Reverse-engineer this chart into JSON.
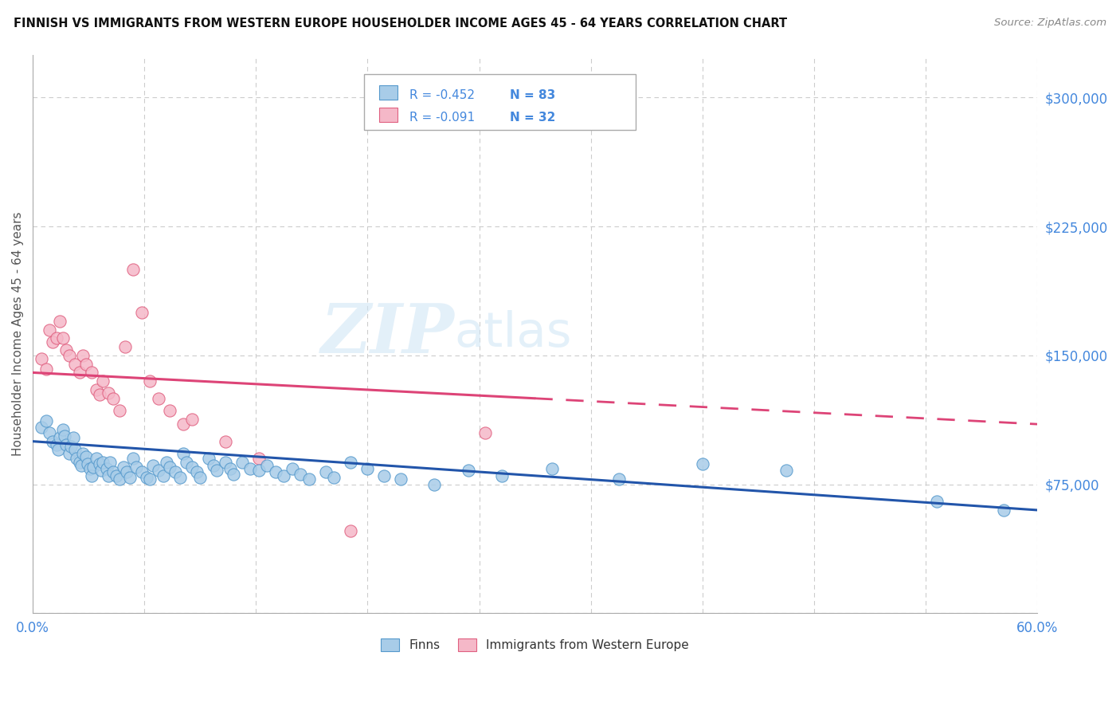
{
  "title": "FINNISH VS IMMIGRANTS FROM WESTERN EUROPE HOUSEHOLDER INCOME AGES 45 - 64 YEARS CORRELATION CHART",
  "source": "Source: ZipAtlas.com",
  "ylabel": "Householder Income Ages 45 - 64 years",
  "xlim": [
    0.0,
    0.6
  ],
  "ylim": [
    0,
    325000
  ],
  "yticks": [
    0,
    75000,
    150000,
    225000,
    300000
  ],
  "ytick_labels": [
    "",
    "$75,000",
    "$150,000",
    "$225,000",
    "$300,000"
  ],
  "legend_r1": "R = -0.452",
  "legend_n1": "N = 83",
  "legend_r2": "R = -0.091",
  "legend_n2": "N = 32",
  "color_finns": "#a8cce8",
  "color_finns_edge": "#5599cc",
  "color_immigrants": "#f5b8c8",
  "color_immigrants_edge": "#e06080",
  "color_finns_line": "#2255aa",
  "color_immigrants_line": "#dd4477",
  "color_axis_labels": "#4488dd",
  "color_title": "#111111",
  "watermark_color": "#cde4f5",
  "finns_x": [
    0.005,
    0.008,
    0.01,
    0.012,
    0.014,
    0.015,
    0.016,
    0.018,
    0.019,
    0.02,
    0.022,
    0.023,
    0.024,
    0.025,
    0.026,
    0.028,
    0.029,
    0.03,
    0.032,
    0.033,
    0.034,
    0.035,
    0.036,
    0.038,
    0.04,
    0.041,
    0.042,
    0.044,
    0.045,
    0.046,
    0.048,
    0.05,
    0.052,
    0.054,
    0.056,
    0.058,
    0.06,
    0.062,
    0.065,
    0.068,
    0.07,
    0.072,
    0.075,
    0.078,
    0.08,
    0.082,
    0.085,
    0.088,
    0.09,
    0.092,
    0.095,
    0.098,
    0.1,
    0.105,
    0.108,
    0.11,
    0.115,
    0.118,
    0.12,
    0.125,
    0.13,
    0.135,
    0.14,
    0.145,
    0.15,
    0.155,
    0.16,
    0.165,
    0.175,
    0.18,
    0.19,
    0.2,
    0.21,
    0.22,
    0.24,
    0.26,
    0.28,
    0.31,
    0.35,
    0.4,
    0.45,
    0.54,
    0.58
  ],
  "finns_y": [
    108000,
    112000,
    105000,
    100000,
    98000,
    95000,
    102000,
    107000,
    103000,
    98000,
    93000,
    97000,
    102000,
    95000,
    90000,
    88000,
    86000,
    93000,
    91000,
    87000,
    84000,
    80000,
    85000,
    90000,
    87000,
    83000,
    88000,
    84000,
    80000,
    88000,
    82000,
    80000,
    78000,
    85000,
    82000,
    79000,
    90000,
    85000,
    82000,
    79000,
    78000,
    86000,
    83000,
    80000,
    88000,
    85000,
    82000,
    79000,
    93000,
    88000,
    85000,
    82000,
    79000,
    90000,
    86000,
    83000,
    88000,
    84000,
    81000,
    88000,
    84000,
    83000,
    86000,
    82000,
    80000,
    84000,
    81000,
    78000,
    82000,
    79000,
    88000,
    84000,
    80000,
    78000,
    75000,
    83000,
    80000,
    84000,
    78000,
    87000,
    83000,
    65000,
    60000
  ],
  "immigrants_x": [
    0.005,
    0.008,
    0.01,
    0.012,
    0.014,
    0.016,
    0.018,
    0.02,
    0.022,
    0.025,
    0.028,
    0.03,
    0.032,
    0.035,
    0.038,
    0.04,
    0.042,
    0.045,
    0.048,
    0.052,
    0.055,
    0.06,
    0.065,
    0.07,
    0.075,
    0.082,
    0.09,
    0.095,
    0.115,
    0.135,
    0.19,
    0.27
  ],
  "immigrants_y": [
    148000,
    142000,
    165000,
    158000,
    160000,
    170000,
    160000,
    153000,
    150000,
    145000,
    140000,
    150000,
    145000,
    140000,
    130000,
    127000,
    135000,
    128000,
    125000,
    118000,
    155000,
    200000,
    175000,
    135000,
    125000,
    118000,
    110000,
    113000,
    100000,
    90000,
    48000,
    105000
  ]
}
